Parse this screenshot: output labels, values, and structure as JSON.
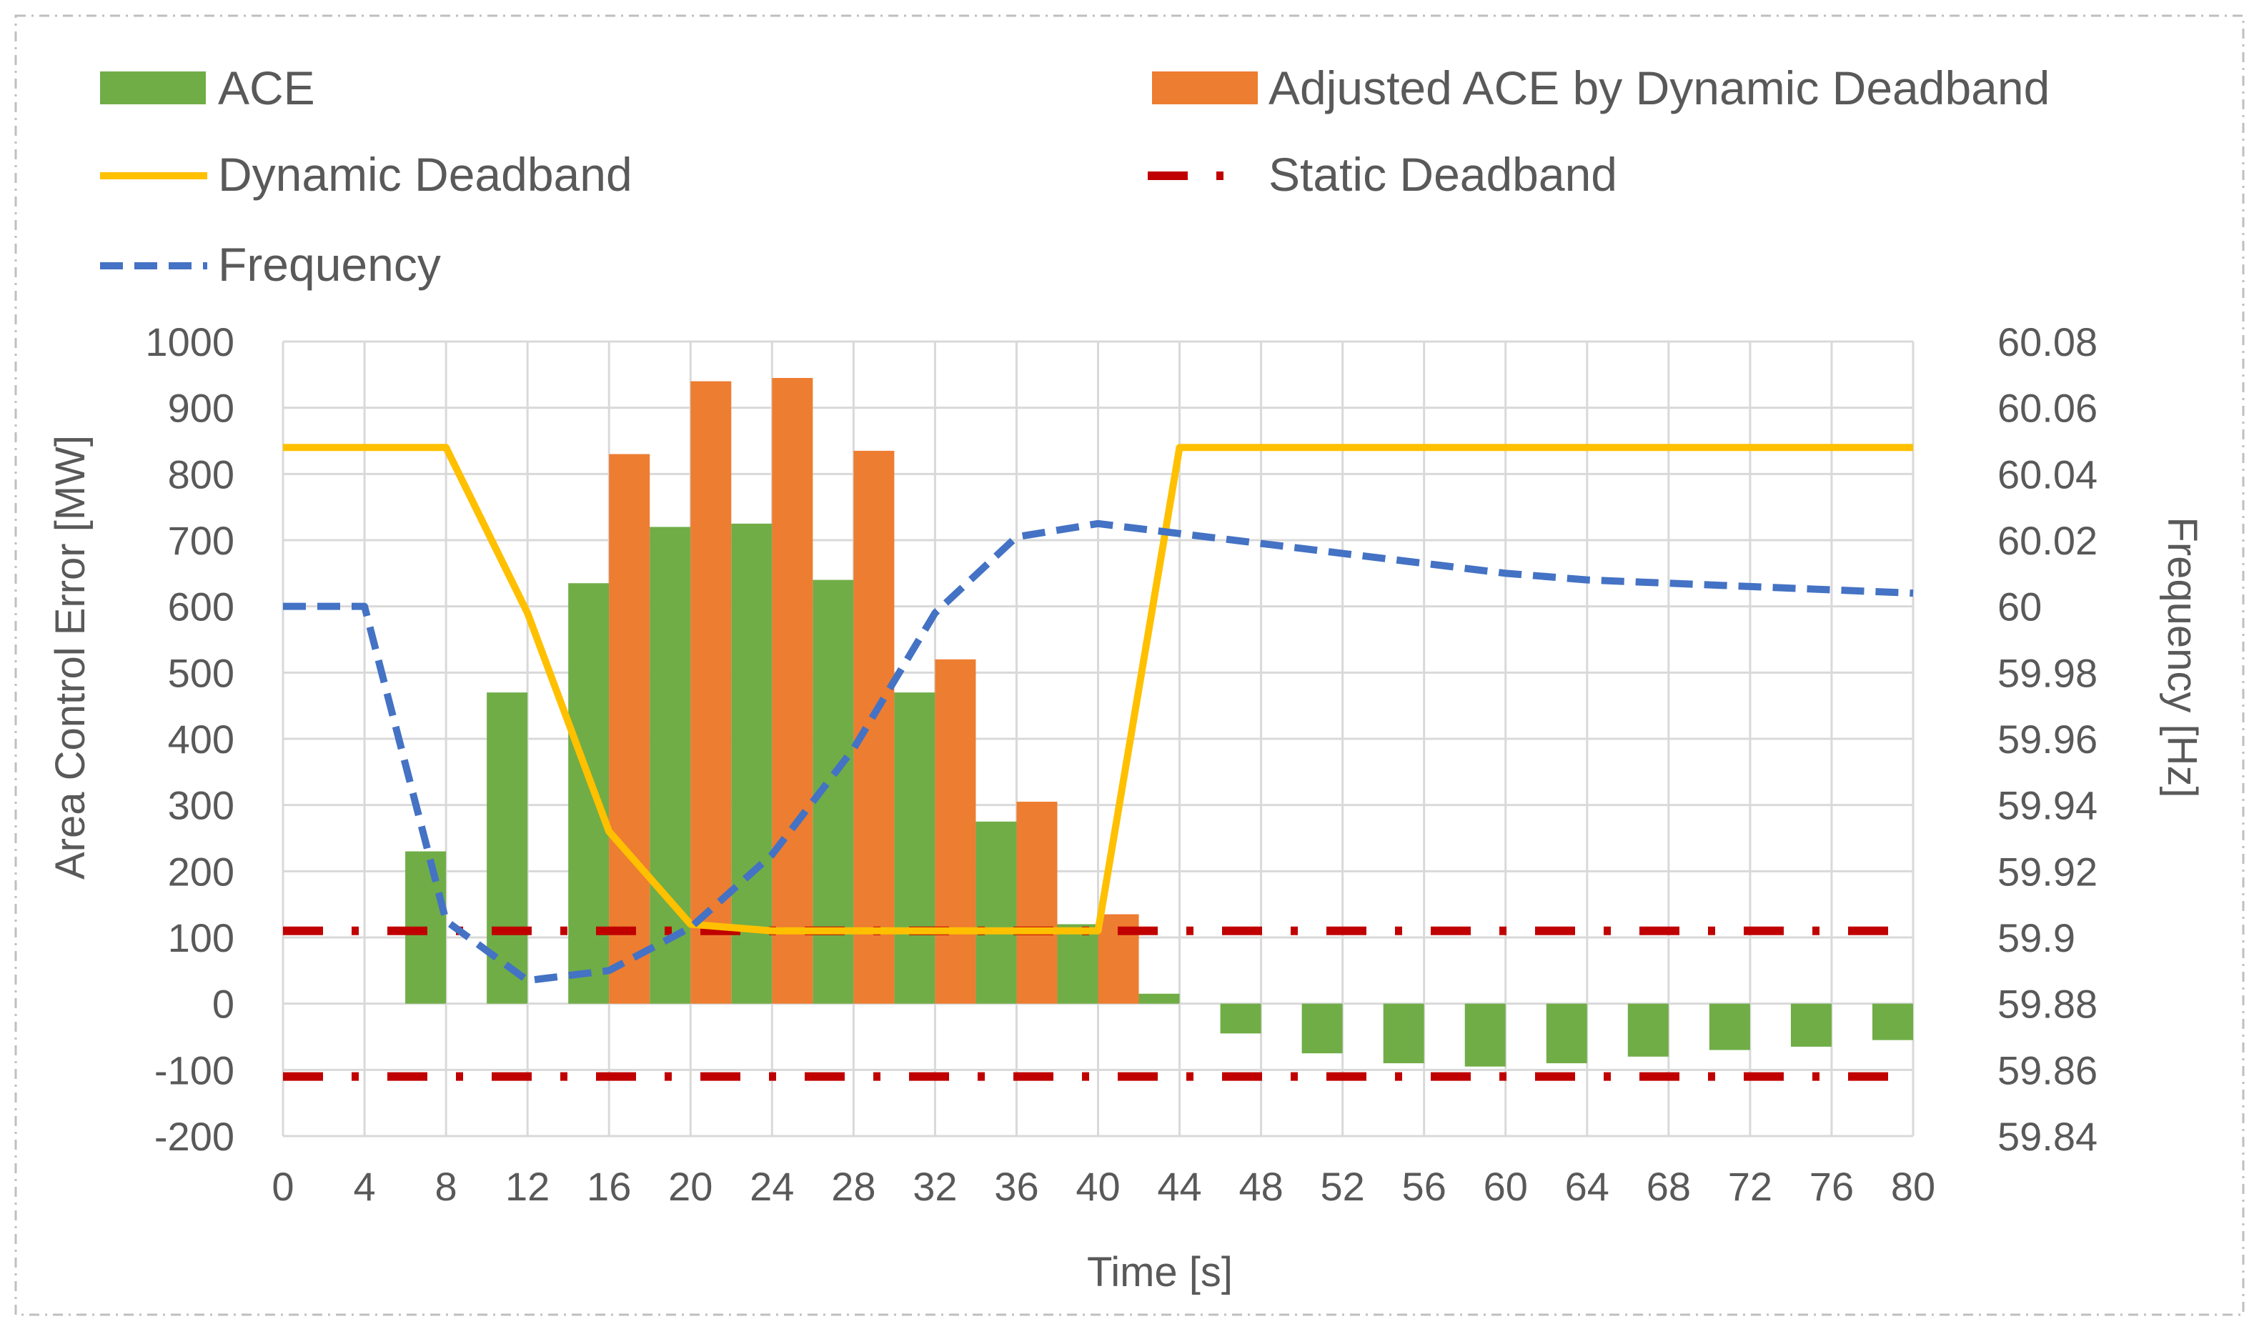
{
  "chart_data": {
    "type": "bar",
    "xlabel": "Time [s]",
    "ylabel_left": "Area Control Error [MW]",
    "ylabel_right": "Frequency [Hz]",
    "xlim": [
      0,
      80
    ],
    "ylim_left": [
      -200,
      1000
    ],
    "ylim_right": [
      59.84,
      60.08
    ],
    "grid": true,
    "legend_position": "top",
    "x_ticks": [
      0,
      4,
      8,
      12,
      16,
      20,
      24,
      28,
      32,
      36,
      40,
      44,
      48,
      52,
      56,
      60,
      64,
      68,
      72,
      76,
      80
    ],
    "y_ticks_left": [
      1000,
      900,
      800,
      700,
      600,
      500,
      400,
      300,
      200,
      100,
      0,
      -100,
      -200
    ],
    "y_ticks_right": [
      "60.08",
      "60.06",
      "60.04",
      "60.02",
      "60",
      "59.98",
      "59.96",
      "59.94",
      "59.92",
      "59.9",
      "59.88",
      "59.86",
      "59.84"
    ],
    "series": [
      {
        "name": "ACE",
        "type": "bar",
        "color": "#70ad47",
        "x": [
          8,
          12,
          16,
          20,
          24,
          28,
          32,
          36,
          40,
          44,
          48,
          52,
          56,
          60,
          64,
          68,
          72,
          76,
          80
        ],
        "values": [
          230,
          470,
          635,
          720,
          725,
          640,
          470,
          275,
          120,
          15,
          -45,
          -75,
          -90,
          -95,
          -90,
          -80,
          -70,
          -65,
          -55
        ]
      },
      {
        "name": "Adjusted ACE by Dynamic Deadband",
        "type": "bar",
        "color": "#ed7d31",
        "x": [
          16,
          20,
          24,
          28,
          32,
          36,
          40
        ],
        "values": [
          830,
          940,
          945,
          835,
          520,
          305,
          135
        ]
      },
      {
        "name": "Dynamic Deadband",
        "type": "line",
        "color": "#ffc000",
        "x": [
          0,
          4,
          8,
          12,
          16,
          20,
          24,
          28,
          32,
          36,
          40,
          44,
          48,
          52,
          56,
          60,
          64,
          68,
          72,
          76,
          80
        ],
        "values": [
          840,
          840,
          840,
          590,
          260,
          120,
          110,
          110,
          110,
          110,
          110,
          840,
          840,
          840,
          840,
          840,
          840,
          840,
          840,
          840,
          840
        ]
      },
      {
        "name": "Static Deadband",
        "type": "line",
        "style": "dash-dot",
        "color": "#c00000",
        "x": [
          0,
          80
        ],
        "values_upper": [
          110,
          110
        ],
        "values_lower": [
          -110,
          -110
        ]
      },
      {
        "name": "Frequency",
        "type": "line",
        "style": "dashed",
        "axis": "right",
        "color": "#4472c4",
        "x": [
          0,
          4,
          8,
          12,
          16,
          20,
          24,
          28,
          32,
          36,
          40,
          44,
          48,
          52,
          56,
          60,
          64,
          68,
          72,
          76,
          80
        ],
        "values": [
          60.0,
          60.0,
          59.905,
          59.887,
          59.89,
          59.903,
          59.925,
          59.957,
          59.998,
          60.021,
          60.025,
          60.022,
          60.019,
          60.016,
          60.013,
          60.01,
          60.008,
          60.007,
          60.006,
          60.005,
          60.004
        ]
      }
    ]
  }
}
